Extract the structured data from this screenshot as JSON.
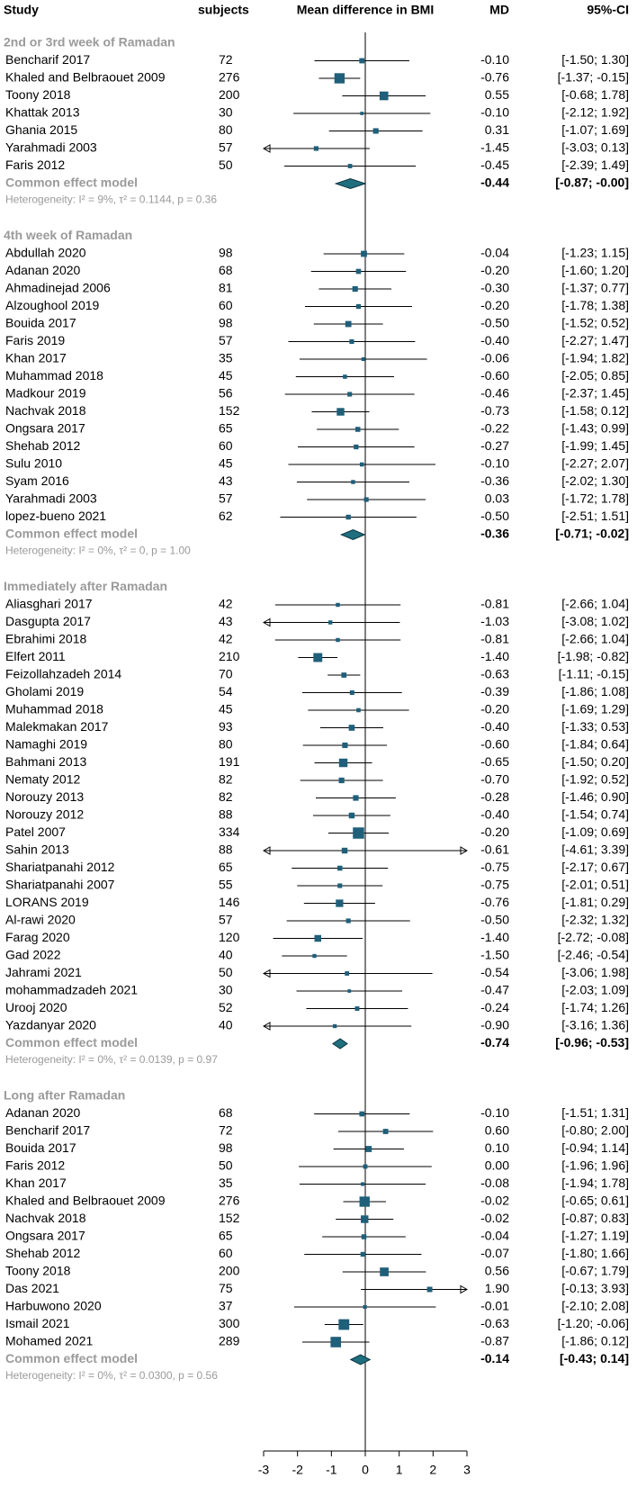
{
  "chart_data": {
    "type": "forest",
    "headers": {
      "study": "Study",
      "subjects": "subjects",
      "plot": "Mean difference in BMI",
      "md": "MD",
      "ci": "95%-CI"
    },
    "pooled_label": "Common effect model",
    "xlim": [
      -3,
      3
    ],
    "xticks": [
      -3,
      -2,
      -1,
      0,
      1,
      2,
      3
    ],
    "box_color": "#1f5f7a",
    "diamond_color": "#1f6e7e",
    "groups": [
      {
        "title": "2nd or 3rd week of Ramadan",
        "studies": [
          {
            "study": "Bencharif 2017",
            "n": 72,
            "md": -0.1,
            "lo": -1.5,
            "hi": 1.3,
            "md_label": "-0.10",
            "ci_label": "[-1.50; 1.30]"
          },
          {
            "study": "Khaled and Belbraouet 2009",
            "n": 276,
            "md": -0.76,
            "lo": -1.37,
            "hi": -0.15,
            "md_label": "-0.76",
            "ci_label": "[-1.37; -0.15]"
          },
          {
            "study": "Toony 2018",
            "n": 200,
            "md": 0.55,
            "lo": -0.68,
            "hi": 1.78,
            "md_label": "0.55",
            "ci_label": "[-0.68; 1.78]"
          },
          {
            "study": "Khattak 2013",
            "n": 30,
            "md": -0.1,
            "lo": -2.12,
            "hi": 1.92,
            "md_label": "-0.10",
            "ci_label": "[-2.12; 1.92]"
          },
          {
            "study": "Ghania 2015",
            "n": 80,
            "md": 0.31,
            "lo": -1.07,
            "hi": 1.69,
            "md_label": "0.31",
            "ci_label": "[-1.07; 1.69]"
          },
          {
            "study": "Yarahmadi 2003",
            "n": 57,
            "md": -1.45,
            "lo": -3.03,
            "hi": 0.13,
            "md_label": "-1.45",
            "ci_label": "[-3.03; 0.13]"
          },
          {
            "study": "Faris 2012",
            "n": 50,
            "md": -0.45,
            "lo": -2.39,
            "hi": 1.49,
            "md_label": "-0.45",
            "ci_label": "[-2.39; 1.49]"
          }
        ],
        "pooled": {
          "md": -0.44,
          "lo": -0.87,
          "hi": 0,
          "md_label": "-0.44",
          "ci_label": "[-0.87; -0.00]"
        },
        "heterogeneity": "Heterogeneity: I² = 9%, τ² = 0.1144, p = 0.36"
      },
      {
        "title": "4th week of Ramadan",
        "studies": [
          {
            "study": "Abdullah 2020",
            "n": 98,
            "md": -0.04,
            "lo": -1.23,
            "hi": 1.15,
            "md_label": "-0.04",
            "ci_label": "[-1.23; 1.15]"
          },
          {
            "study": "Adanan 2020",
            "n": 68,
            "md": -0.2,
            "lo": -1.6,
            "hi": 1.2,
            "md_label": "-0.20",
            "ci_label": "[-1.60; 1.20]"
          },
          {
            "study": "Ahmadinejad 2006",
            "n": 81,
            "md": -0.3,
            "lo": -1.37,
            "hi": 0.77,
            "md_label": "-0.30",
            "ci_label": "[-1.37; 0.77]"
          },
          {
            "study": "Alzoughool 2019",
            "n": 60,
            "md": -0.2,
            "lo": -1.78,
            "hi": 1.38,
            "md_label": "-0.20",
            "ci_label": "[-1.78; 1.38]"
          },
          {
            "study": "Bouida 2017",
            "n": 98,
            "md": -0.5,
            "lo": -1.52,
            "hi": 0.52,
            "md_label": "-0.50",
            "ci_label": "[-1.52; 0.52]"
          },
          {
            "study": "Faris 2019",
            "n": 57,
            "md": -0.4,
            "lo": -2.27,
            "hi": 1.47,
            "md_label": "-0.40",
            "ci_label": "[-2.27; 1.47]"
          },
          {
            "study": "Khan 2017",
            "n": 35,
            "md": -0.06,
            "lo": -1.94,
            "hi": 1.82,
            "md_label": "-0.06",
            "ci_label": "[-1.94; 1.82]"
          },
          {
            "study": "Muhammad 2018",
            "n": 45,
            "md": -0.6,
            "lo": -2.05,
            "hi": 0.85,
            "md_label": "-0.60",
            "ci_label": "[-2.05; 0.85]"
          },
          {
            "study": "Madkour  2019",
            "n": 56,
            "md": -0.46,
            "lo": -2.37,
            "hi": 1.45,
            "md_label": "-0.46",
            "ci_label": "[-2.37; 1.45]"
          },
          {
            "study": "Nachvak 2018",
            "n": 152,
            "md": -0.73,
            "lo": -1.58,
            "hi": 0.12,
            "md_label": "-0.73",
            "ci_label": "[-1.58; 0.12]"
          },
          {
            "study": "Ongsara 2017",
            "n": 65,
            "md": -0.22,
            "lo": -1.43,
            "hi": 0.99,
            "md_label": "-0.22",
            "ci_label": "[-1.43; 0.99]"
          },
          {
            "study": "Shehab 2012",
            "n": 60,
            "md": -0.27,
            "lo": -1.99,
            "hi": 1.45,
            "md_label": "-0.27",
            "ci_label": "[-1.99; 1.45]"
          },
          {
            "study": "Sulu 2010",
            "n": 45,
            "md": -0.1,
            "lo": -2.27,
            "hi": 2.07,
            "md_label": "-0.10",
            "ci_label": "[-2.27; 2.07]"
          },
          {
            "study": "Syam 2016",
            "n": 43,
            "md": -0.36,
            "lo": -2.02,
            "hi": 1.3,
            "md_label": "-0.36",
            "ci_label": "[-2.02; 1.30]"
          },
          {
            "study": "Yarahmadi 2003",
            "n": 57,
            "md": 0.03,
            "lo": -1.72,
            "hi": 1.78,
            "md_label": "0.03",
            "ci_label": "[-1.72; 1.78]"
          },
          {
            "study": "lopez-bueno 2021",
            "n": 62,
            "md": -0.5,
            "lo": -2.51,
            "hi": 1.51,
            "md_label": "-0.50",
            "ci_label": "[-2.51; 1.51]"
          }
        ],
        "pooled": {
          "md": -0.36,
          "lo": -0.71,
          "hi": -0.02,
          "md_label": "-0.36",
          "ci_label": "[-0.71; -0.02]"
        },
        "heterogeneity": "Heterogeneity: I² = 0%, τ² = 0, p = 1.00"
      },
      {
        "title": "Immediately after Ramadan",
        "studies": [
          {
            "study": "Aliasghari 2017",
            "n": 42,
            "md": -0.81,
            "lo": -2.66,
            "hi": 1.04,
            "md_label": "-0.81",
            "ci_label": "[-2.66; 1.04]"
          },
          {
            "study": "Dasgupta 2017",
            "n": 43,
            "md": -1.03,
            "lo": -3.08,
            "hi": 1.02,
            "md_label": "-1.03",
            "ci_label": "[-3.08; 1.02]"
          },
          {
            "study": "Ebrahimi 2018",
            "n": 42,
            "md": -0.81,
            "lo": -2.66,
            "hi": 1.04,
            "md_label": "-0.81",
            "ci_label": "[-2.66; 1.04]"
          },
          {
            "study": "Elfert 2011",
            "n": 210,
            "md": -1.4,
            "lo": -1.98,
            "hi": -0.82,
            "md_label": "-1.40",
            "ci_label": "[-1.98; -0.82]"
          },
          {
            "study": "Feizollahzadeh  2014",
            "n": 70,
            "md": -0.63,
            "lo": -1.11,
            "hi": -0.15,
            "md_label": "-0.63",
            "ci_label": "[-1.11; -0.15]"
          },
          {
            "study": "Gholami 2019",
            "n": 54,
            "md": -0.39,
            "lo": -1.86,
            "hi": 1.08,
            "md_label": "-0.39",
            "ci_label": "[-1.86; 1.08]"
          },
          {
            "study": "Muhammad 2018",
            "n": 45,
            "md": -0.2,
            "lo": -1.69,
            "hi": 1.29,
            "md_label": "-0.20",
            "ci_label": "[-1.69; 1.29]"
          },
          {
            "study": "Malekmakan  2017",
            "n": 93,
            "md": -0.4,
            "lo": -1.33,
            "hi": 0.53,
            "md_label": "-0.40",
            "ci_label": "[-1.33; 0.53]"
          },
          {
            "study": "Namaghi 2019",
            "n": 80,
            "md": -0.6,
            "lo": -1.84,
            "hi": 0.64,
            "md_label": "-0.60",
            "ci_label": "[-1.84; 0.64]"
          },
          {
            "study": "Bahmani 2013",
            "n": 191,
            "md": -0.65,
            "lo": -1.5,
            "hi": 0.2,
            "md_label": "-0.65",
            "ci_label": "[-1.50; 0.20]"
          },
          {
            "study": "Nematy 2012",
            "n": 82,
            "md": -0.7,
            "lo": -1.92,
            "hi": 0.52,
            "md_label": "-0.70",
            "ci_label": "[-1.92; 0.52]"
          },
          {
            "study": "Norouzy 2013",
            "n": 82,
            "md": -0.28,
            "lo": -1.46,
            "hi": 0.9,
            "md_label": "-0.28",
            "ci_label": "[-1.46; 0.90]"
          },
          {
            "study": "Norouzy 2012",
            "n": 88,
            "md": -0.4,
            "lo": -1.54,
            "hi": 0.74,
            "md_label": "-0.40",
            "ci_label": "[-1.54; 0.74]"
          },
          {
            "study": "Patel 2007",
            "n": 334,
            "md": -0.2,
            "lo": -1.09,
            "hi": 0.69,
            "md_label": "-0.20",
            "ci_label": "[-1.09; 0.69]"
          },
          {
            "study": "Sahin 2013",
            "n": 88,
            "md": -0.61,
            "lo": -4.61,
            "hi": 3.39,
            "md_label": "-0.61",
            "ci_label": "[-4.61; 3.39]"
          },
          {
            "study": "Shariatpanahi  2012",
            "n": 65,
            "md": -0.75,
            "lo": -2.17,
            "hi": 0.67,
            "md_label": "-0.75",
            "ci_label": "[-2.17; 0.67]"
          },
          {
            "study": "Shariatpanahi  2007",
            "n": 55,
            "md": -0.75,
            "lo": -2.01,
            "hi": 0.51,
            "md_label": "-0.75",
            "ci_label": "[-2.01; 0.51]"
          },
          {
            "study": "LORANS 2019",
            "n": 146,
            "md": -0.76,
            "lo": -1.81,
            "hi": 0.29,
            "md_label": "-0.76",
            "ci_label": "[-1.81; 0.29]"
          },
          {
            "study": "Al-rawi 2020",
            "n": 57,
            "md": -0.5,
            "lo": -2.32,
            "hi": 1.32,
            "md_label": "-0.50",
            "ci_label": "[-2.32; 1.32]"
          },
          {
            "study": "Farag 2020",
            "n": 120,
            "md": -1.4,
            "lo": -2.72,
            "hi": -0.08,
            "md_label": "-1.40",
            "ci_label": "[-2.72; -0.08]"
          },
          {
            "study": "Gad 2022",
            "n": 40,
            "md": -1.5,
            "lo": -2.46,
            "hi": -0.54,
            "md_label": "-1.50",
            "ci_label": "[-2.46; -0.54]"
          },
          {
            "study": "Jahrami 2021",
            "n": 50,
            "md": -0.54,
            "lo": -3.06,
            "hi": 1.98,
            "md_label": "-0.54",
            "ci_label": "[-3.06; 1.98]"
          },
          {
            "study": "mohammadzadeh 2021",
            "n": 30,
            "md": -0.47,
            "lo": -2.03,
            "hi": 1.09,
            "md_label": "-0.47",
            "ci_label": "[-2.03; 1.09]"
          },
          {
            "study": "Urooj 2020",
            "n": 52,
            "md": -0.24,
            "lo": -1.74,
            "hi": 1.26,
            "md_label": "-0.24",
            "ci_label": "[-1.74; 1.26]"
          },
          {
            "study": "Yazdanyar 2020",
            "n": 40,
            "md": -0.9,
            "lo": -3.16,
            "hi": 1.36,
            "md_label": "-0.90",
            "ci_label": "[-3.16; 1.36]"
          }
        ],
        "pooled": {
          "md": -0.74,
          "lo": -0.96,
          "hi": -0.53,
          "md_label": "-0.74",
          "ci_label": "[-0.96; -0.53]"
        },
        "heterogeneity": "Heterogeneity: I² = 0%, τ² = 0.0139, p = 0.97"
      },
      {
        "title": "Long after Ramadan",
        "studies": [
          {
            "study": "Adanan 2020",
            "n": 68,
            "md": -0.1,
            "lo": -1.51,
            "hi": 1.31,
            "md_label": "-0.10",
            "ci_label": "[-1.51; 1.31]"
          },
          {
            "study": "Bencharif 2017",
            "n": 72,
            "md": 0.6,
            "lo": -0.8,
            "hi": 2,
            "md_label": "0.60",
            "ci_label": "[-0.80; 2.00]"
          },
          {
            "study": "Bouida 2017",
            "n": 98,
            "md": 0.1,
            "lo": -0.94,
            "hi": 1.14,
            "md_label": "0.10",
            "ci_label": "[-0.94; 1.14]"
          },
          {
            "study": "Faris 2012",
            "n": 50,
            "md": 0,
            "lo": -1.96,
            "hi": 1.96,
            "md_label": "0.00",
            "ci_label": "[-1.96; 1.96]"
          },
          {
            "study": "Khan 2017",
            "n": 35,
            "md": -0.08,
            "lo": -1.94,
            "hi": 1.78,
            "md_label": "-0.08",
            "ci_label": "[-1.94; 1.78]"
          },
          {
            "study": "Khaled and Belbraouet 2009",
            "n": 276,
            "md": -0.02,
            "lo": -0.65,
            "hi": 0.61,
            "md_label": "-0.02",
            "ci_label": "[-0.65; 0.61]"
          },
          {
            "study": "Nachvak 2018",
            "n": 152,
            "md": -0.02,
            "lo": -0.87,
            "hi": 0.83,
            "md_label": "-0.02",
            "ci_label": "[-0.87; 0.83]"
          },
          {
            "study": "Ongsara 2017",
            "n": 65,
            "md": -0.04,
            "lo": -1.27,
            "hi": 1.19,
            "md_label": "-0.04",
            "ci_label": "[-1.27; 1.19]"
          },
          {
            "study": "Shehab 2012",
            "n": 60,
            "md": -0.07,
            "lo": -1.8,
            "hi": 1.66,
            "md_label": "-0.07",
            "ci_label": "[-1.80; 1.66]"
          },
          {
            "study": "Toony 2018",
            "n": 200,
            "md": 0.56,
            "lo": -0.67,
            "hi": 1.79,
            "md_label": "0.56",
            "ci_label": "[-0.67; 1.79]"
          },
          {
            "study": "Das 2021",
            "n": 75,
            "md": 1.9,
            "lo": -0.13,
            "hi": 3.93,
            "md_label": "1.90",
            "ci_label": "[-0.13; 3.93]"
          },
          {
            "study": "Harbuwono 2020",
            "n": 37,
            "md": -0.01,
            "lo": -2.1,
            "hi": 2.08,
            "md_label": "-0.01",
            "ci_label": "[-2.10; 2.08]"
          },
          {
            "study": "Ismail 2021",
            "n": 300,
            "md": -0.63,
            "lo": -1.2,
            "hi": -0.06,
            "md_label": "-0.63",
            "ci_label": "[-1.20; -0.06]"
          },
          {
            "study": "Mohamed 2021",
            "n": 289,
            "md": -0.87,
            "lo": -1.86,
            "hi": 0.12,
            "md_label": "-0.87",
            "ci_label": "[-1.86; 0.12]"
          }
        ],
        "pooled": {
          "md": -0.14,
          "lo": -0.43,
          "hi": 0.14,
          "md_label": "-0.14",
          "ci_label": "[-0.43; 0.14]"
        },
        "heterogeneity": "Heterogeneity: I² = 0%, τ² = 0.0300, p = 0.56"
      }
    ]
  }
}
